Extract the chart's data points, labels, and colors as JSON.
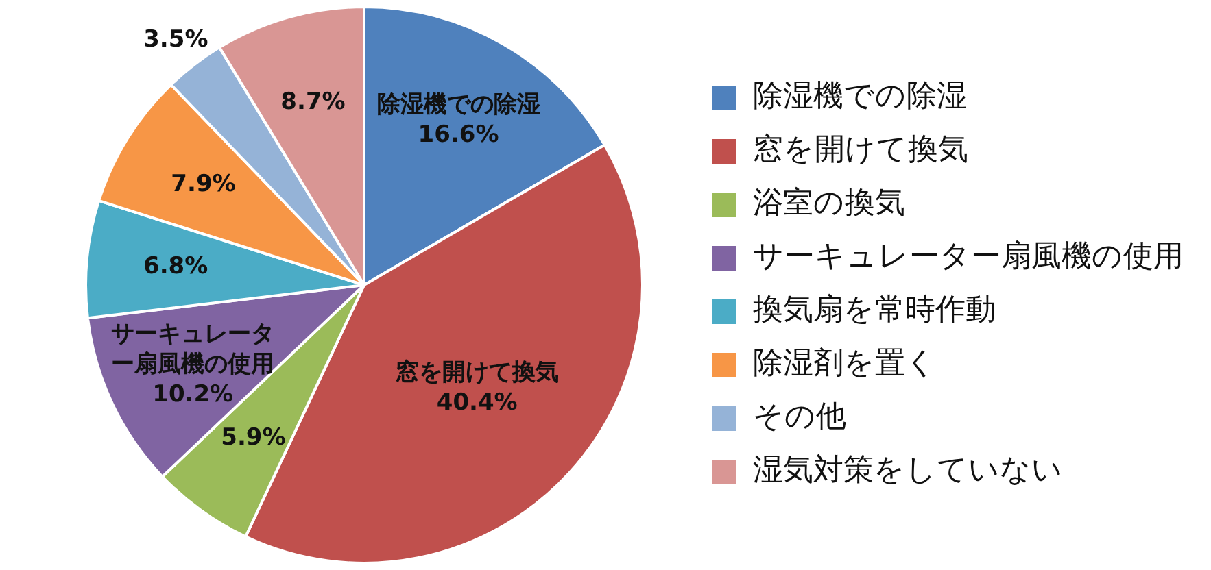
{
  "chart_data": {
    "type": "pie",
    "categories": [
      "除湿機での除湿",
      "窓を開けて換気",
      "浴室の換気",
      "サーキュレーター扇風機の使用",
      "換気扇を常時作動",
      "除湿剤を置く",
      "その他",
      "湿気対策をしていない"
    ],
    "values": [
      16.6,
      40.4,
      5.9,
      10.2,
      6.8,
      7.9,
      3.5,
      8.7
    ],
    "colors": [
      "#4f81bd",
      "#c0504d",
      "#9bbb59",
      "#8064a2",
      "#4bacc6",
      "#f79646",
      "#95b3d7",
      "#d99694"
    ],
    "value_labels": [
      "除湿機での除湿16.6%",
      "窓を開けて換気40.4%",
      "5.9%",
      "サーキュレーター扇風機の使用10.2%",
      "6.8%",
      "7.9%",
      "3.5%",
      "8.7%"
    ],
    "legend": "right"
  }
}
